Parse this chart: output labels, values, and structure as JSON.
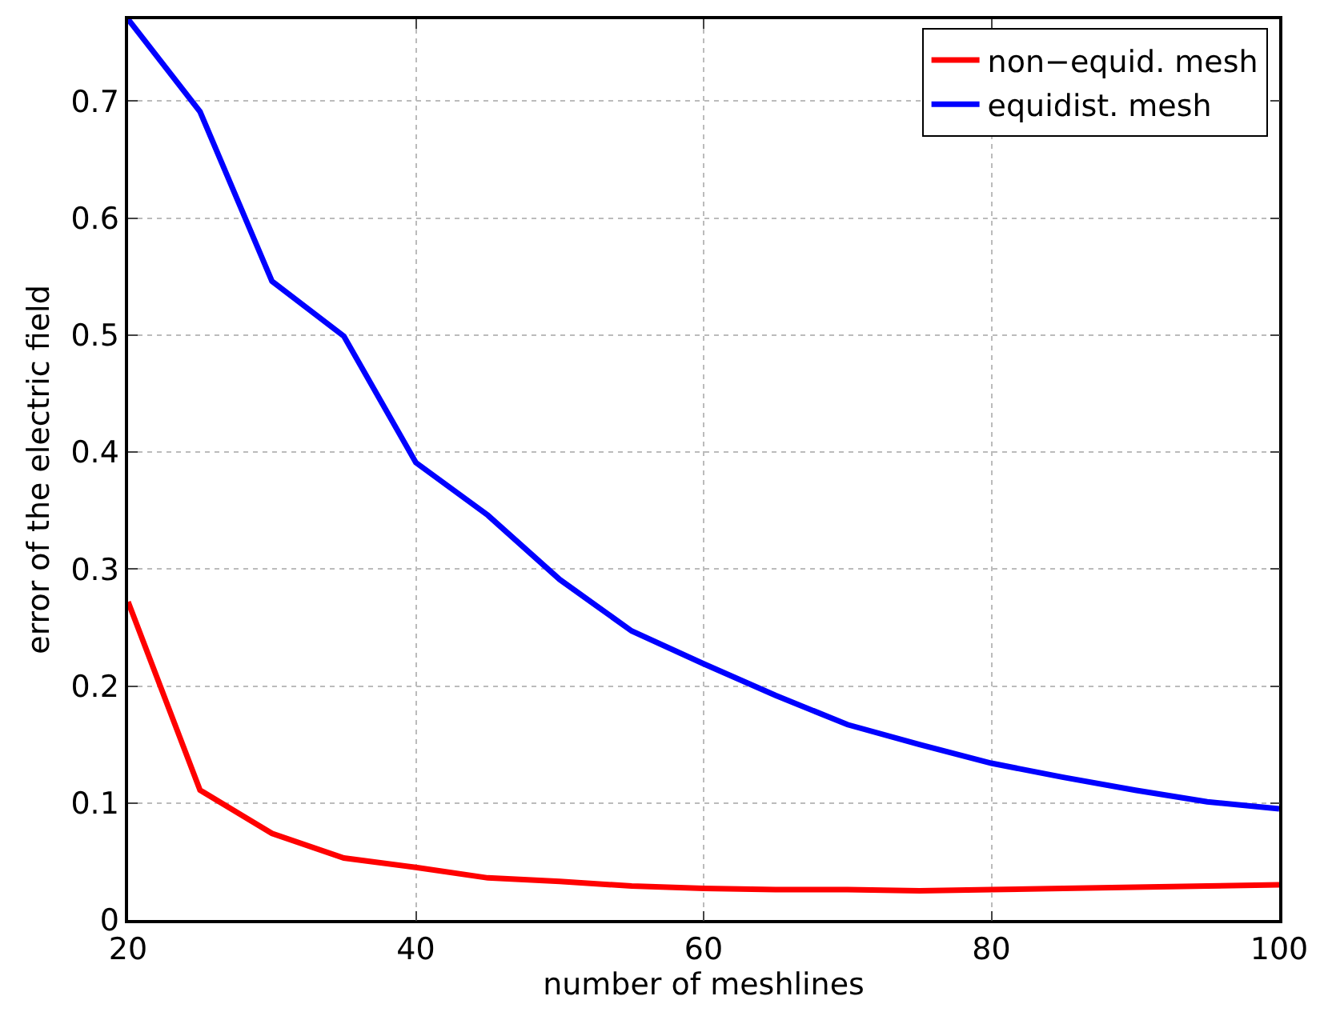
{
  "chart_data": {
    "type": "line",
    "xlabel": "number of meshlines",
    "ylabel": "error of the electric field",
    "x": [
      20,
      25,
      30,
      35,
      40,
      45,
      50,
      55,
      60,
      65,
      70,
      75,
      80,
      85,
      90,
      95,
      100
    ],
    "series": [
      {
        "name": "non−equid. mesh",
        "color": "#ff0000",
        "values": [
          0.272,
          0.111,
          0.074,
          0.053,
          0.045,
          0.036,
          0.033,
          0.029,
          0.027,
          0.026,
          0.026,
          0.025,
          0.026,
          0.027,
          0.028,
          0.029,
          0.03
        ]
      },
      {
        "name": "equidist. mesh",
        "color": "#0000ff",
        "values": [
          0.77,
          0.691,
          0.546,
          0.499,
          0.391,
          0.346,
          0.291,
          0.247,
          0.219,
          0.192,
          0.167,
          0.15,
          0.134,
          0.122,
          0.111,
          0.101,
          0.095
        ]
      }
    ],
    "xlim": [
      20,
      100
    ],
    "xticks": [
      20,
      40,
      60,
      80,
      100
    ],
    "ylim": [
      0,
      0.77
    ],
    "yticks": [
      0,
      0.1,
      0.2,
      0.3,
      0.4,
      0.5,
      0.6,
      0.7
    ],
    "grid": true,
    "legend": "top right",
    "marker": "none",
    "line_style": "solid"
  }
}
